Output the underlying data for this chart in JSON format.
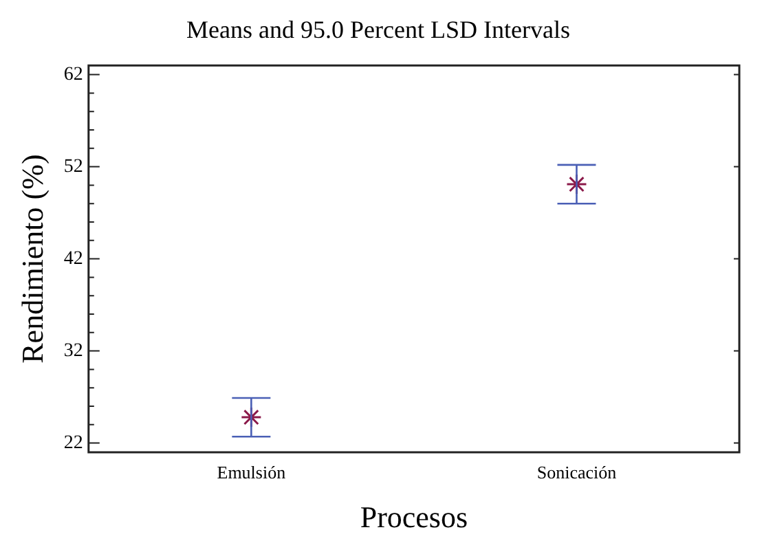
{
  "chart_data": {
    "type": "scatter",
    "title": "Means and 95.0 Percent LSD Intervals",
    "xlabel": "Procesos",
    "ylabel": "Rendimiento (%)",
    "categories": [
      "Emulsión",
      "Sonicación"
    ],
    "series": [
      {
        "color": "#8b1a4a",
        "values": [
          24.8,
          50.1
        ],
        "errors": [
          2.1,
          2.1
        ]
      }
    ],
    "ylim": [
      21,
      63
    ],
    "yticks": [
      22,
      32,
      42,
      52,
      62
    ],
    "marker": "cross",
    "grid": false,
    "legend": false
  }
}
